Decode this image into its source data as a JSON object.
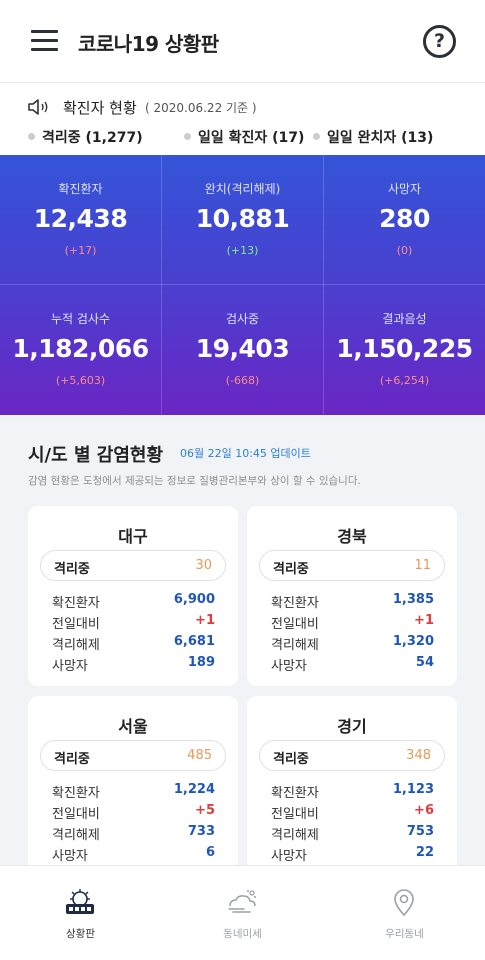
{
  "appbar": {
    "title": "코로나19 상황판",
    "menu_icon": "hamburger-menu-icon",
    "help_label": "?"
  },
  "summary": {
    "title": "확진자 현황",
    "date": "( 2020.06.22 기준 )",
    "chips": [
      "격리중 (1,277)",
      "일일 확진자 (17)",
      "일일 완치자 (13)"
    ]
  },
  "stats": [
    {
      "label": "확진환자",
      "value": "12,438",
      "change": "(+17)"
    },
    {
      "label": "완치(격리해제)",
      "value": "10,881",
      "change": "(+13)"
    },
    {
      "label": "사망자",
      "value": "280",
      "change": "(0)"
    },
    {
      "label": "누적 검사수",
      "value": "1,182,066",
      "change": "(+5,603)"
    },
    {
      "label": "검사중",
      "value": "19,403",
      "change": "(-668)"
    },
    {
      "label": "결과음성",
      "value": "1,150,225",
      "change": "(+6,254)"
    }
  ],
  "regions": {
    "title": "시/도 별 감염현황",
    "updated": "06월 22일 10:45 업데이트",
    "note": "감염 현황은 도청에서 제공되는 정보로 질병관리본부와 상이 할 수 있습니다.",
    "labels": {
      "isolated": "격리중",
      "confirmed": "확진환자",
      "diff": "전일대비",
      "released": "격리해제",
      "deaths": "사망자"
    },
    "cards": [
      {
        "name": "대구",
        "isolated": "30",
        "confirmed": "6,900",
        "diff": "+1",
        "released": "6,681",
        "deaths": "189"
      },
      {
        "name": "경북",
        "isolated": "11",
        "confirmed": "1,385",
        "diff": "+1",
        "released": "1,320",
        "deaths": "54"
      },
      {
        "name": "서울",
        "isolated": "485",
        "confirmed": "1,224",
        "diff": "+5",
        "released": "733",
        "deaths": "6"
      },
      {
        "name": "경기",
        "isolated": "348",
        "confirmed": "1,123",
        "diff": "+6",
        "released": "753",
        "deaths": "22"
      }
    ]
  },
  "tabbar": {
    "tabs": [
      {
        "label": "상황판",
        "icon": "virus-dashboard-icon",
        "active": true
      },
      {
        "label": "동네미세",
        "icon": "fine-dust-icon",
        "active": false
      },
      {
        "label": "우리동네",
        "icon": "location-pin-icon",
        "active": false
      }
    ]
  },
  "colors": {
    "stats_gradient_top": "#3454d8",
    "stats_gradient_bottom": "#6a26c4",
    "increase": "#e23b3b",
    "value_blue": "#1f56b8",
    "isolated": "#e89a5a",
    "update_link": "#2a7fd4"
  }
}
